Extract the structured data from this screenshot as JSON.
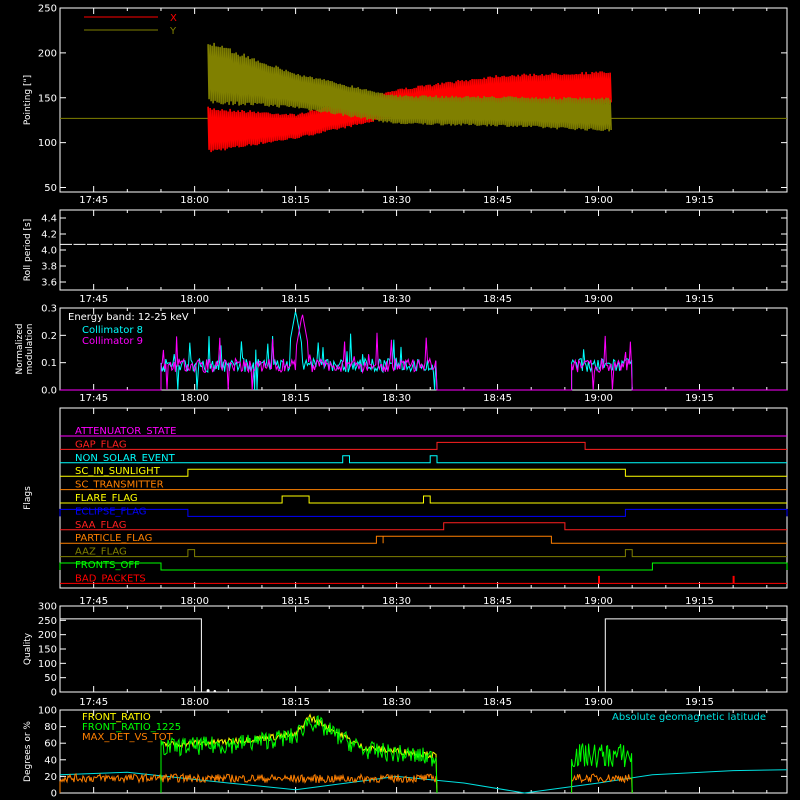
{
  "chart_data": [
    {
      "id": "pointing",
      "type": "line",
      "ylabel": "Pointing [\"]",
      "ylim": [
        45,
        250
      ],
      "yticks": [
        "50",
        "100",
        "150",
        "200",
        "250"
      ],
      "x_tick_labels": [
        "17:45",
        "18:00",
        "18:15",
        "18:30",
        "18:45",
        "19:00",
        "19:15"
      ],
      "legend": [
        {
          "name": "X",
          "color": "#ff0000"
        },
        {
          "name": "Y",
          "color": "#808000"
        }
      ],
      "series": [
        {
          "name": "X",
          "color": "#ff0000",
          "x": [
            "18:02",
            "18:15",
            "18:30",
            "18:45",
            "19:02"
          ],
          "y_low": [
            88,
            104,
            128,
            134,
            142
          ],
          "y_high": [
            140,
            132,
            160,
            176,
            180
          ]
        },
        {
          "name": "Y",
          "color": "#808000",
          "x": [
            "18:02",
            "18:15",
            "18:30",
            "18:45",
            "19:02"
          ],
          "y_low": [
            143,
            138,
            120,
            118,
            112
          ],
          "y_high": [
            214,
            178,
            153,
            152,
            150
          ]
        },
        {
          "name": "baseline",
          "color": "#808000",
          "x": [
            "17:40",
            "19:28"
          ],
          "y": [
            127,
            127
          ]
        }
      ]
    },
    {
      "id": "roll-period",
      "type": "line",
      "ylabel": "Roll period [s]",
      "ylim": [
        3.5,
        4.5
      ],
      "yticks": [
        "3.6",
        "3.8",
        "4.0",
        "4.2",
        "4.4"
      ],
      "x_tick_labels": [
        "17:45",
        "18:00",
        "18:15",
        "18:30",
        "18:45",
        "19:00",
        "19:15"
      ],
      "series": [
        {
          "name": "roll",
          "color": "#ffffff",
          "x": [
            "17:40",
            "19:28"
          ],
          "y": [
            4.07,
            4.07
          ]
        }
      ]
    },
    {
      "id": "modulation",
      "type": "line",
      "ylabel": "Normalized modulation",
      "ylim": [
        0,
        0.3
      ],
      "yticks": [
        "0.0",
        "0.1",
        "0.2",
        "0.3"
      ],
      "x_tick_labels": [
        "17:45",
        "18:00",
        "18:15",
        "18:30",
        "18:45",
        "19:00",
        "19:15"
      ],
      "annotation": "Energy band: 12-25 keV",
      "legend": [
        {
          "name": "Collimator 8",
          "color": "#00ffff"
        },
        {
          "name": "Collimator 9",
          "color": "#ff00ff"
        }
      ],
      "segments": [
        [
          "17:55",
          "18:36"
        ],
        [
          "18:56",
          "19:05"
        ]
      ],
      "series": [
        {
          "name": "Collimator 8",
          "color": "#00ffff",
          "level": 0.09,
          "peak": 0.29,
          "peak_x": "18:15"
        },
        {
          "name": "Collimator 9",
          "color": "#ff00ff",
          "level": 0.09,
          "peak": 0.28,
          "peak_x": "18:16"
        }
      ]
    },
    {
      "id": "flags",
      "type": "line",
      "ylabel": "Flags",
      "x_tick_labels": [
        "17:45",
        "18:00",
        "18:15",
        "18:30",
        "18:45",
        "19:00",
        "19:15"
      ],
      "flags": [
        {
          "name": "ATTENUATOR_STATE",
          "color": "#ff00ff",
          "on": []
        },
        {
          "name": "GAP_FLAG",
          "color": "#ff2020",
          "on": [
            [
              "18:36",
              "18:58"
            ]
          ]
        },
        {
          "name": "NON_SOLAR_EVENT",
          "color": "#00ffff",
          "on": [
            [
              "18:22",
              "18:23"
            ],
            [
              "18:35",
              "18:36"
            ]
          ]
        },
        {
          "name": "SC_IN_SUNLIGHT",
          "color": "#ffff00",
          "on": [
            [
              "17:59",
              "19:04"
            ]
          ]
        },
        {
          "name": "SC_TRANSMITTER",
          "color": "#ff8000",
          "on": []
        },
        {
          "name": "FLARE_FLAG",
          "color": "#ffff00",
          "on": [
            [
              "18:13",
              "18:17"
            ],
            [
              "18:34",
              "18:35"
            ]
          ]
        },
        {
          "name": "ECLIPSE_FLAG",
          "color": "#0000ff",
          "on": [
            [
              "17:40",
              "17:59"
            ],
            [
              "19:04",
              "19:28"
            ]
          ]
        },
        {
          "name": "SAA_FLAG",
          "color": "#ff2020",
          "on": [
            [
              "18:37",
              "18:55"
            ]
          ]
        },
        {
          "name": "PARTICLE_FLAG",
          "color": "#ff8000",
          "on": [
            [
              "18:27",
              "18:28"
            ],
            [
              "18:28",
              "18:53"
            ]
          ]
        },
        {
          "name": "AAZ_FLAG",
          "color": "#808000",
          "on": [
            [
              "17:59",
              "18:00"
            ],
            [
              "19:04",
              "19:05"
            ]
          ]
        },
        {
          "name": "FRONTS_OFF",
          "color": "#00ff00",
          "on": [
            [
              "17:40",
              "17:55"
            ],
            [
              "19:08",
              "19:28"
            ]
          ]
        },
        {
          "name": "BAD_PACKETS",
          "color": "#ff0000",
          "on": [
            [
              "19:00",
              "19:00"
            ],
            [
              "19:20",
              "19:20"
            ]
          ]
        }
      ]
    },
    {
      "id": "quality",
      "type": "line",
      "ylabel": "Quality",
      "ylim": [
        0,
        300
      ],
      "yticks": [
        "0",
        "50",
        "100",
        "150",
        "200",
        "250",
        "300"
      ],
      "x_tick_labels": [
        "17:45",
        "18:00",
        "18:15",
        "18:30",
        "18:45",
        "19:00",
        "19:15"
      ],
      "series": [
        {
          "name": "quality",
          "color": "#ffffff",
          "x": [
            "17:40",
            "18:01",
            "18:01",
            "19:01",
            "19:01",
            "19:28"
          ],
          "y": [
            255,
            255,
            0,
            0,
            255,
            255
          ]
        }
      ]
    },
    {
      "id": "geomagnetic",
      "type": "line",
      "ylabel": "Degrees or %",
      "ylim": [
        0,
        100
      ],
      "yticks": [
        "0",
        "20",
        "40",
        "60",
        "80",
        "100"
      ],
      "x_tick_labels": [
        "17:45",
        "18:00",
        "18:15",
        "18:30",
        "18:45",
        "19:00",
        "19:15"
      ],
      "legend": [
        {
          "name": "FRONT_RATIO",
          "color": "#ffff00"
        },
        {
          "name": "FRONT_RATIO_1225",
          "color": "#00ff00"
        },
        {
          "name": "MAX_DET_VS_TOT",
          "color": "#ff8000"
        }
      ],
      "latitude_label": "Absolute geomagnetic latitude",
      "series": [
        {
          "name": "FRONT_RATIO",
          "color": "#ffff00",
          "x": [
            "17:55",
            "18:05",
            "18:15",
            "18:17",
            "18:25",
            "18:36"
          ],
          "y": [
            58,
            62,
            70,
            92,
            55,
            45
          ]
        },
        {
          "name": "FRONT_RATIO_1225",
          "color": "#00ff00",
          "x": [
            "17:55",
            "18:05",
            "18:15",
            "18:17",
            "18:25",
            "18:36"
          ],
          "y": [
            55,
            58,
            68,
            88,
            52,
            42
          ]
        },
        {
          "name": "MAX_DET_VS_TOT",
          "color": "#ff8000",
          "x": [
            "17:40",
            "18:00",
            "18:20",
            "18:36"
          ],
          "y": [
            18,
            18,
            17,
            18
          ]
        },
        {
          "name": "Absolute geomagnetic latitude",
          "color": "#00e0e0",
          "x": [
            "17:40",
            "17:50",
            "18:05",
            "18:15",
            "18:30",
            "18:40",
            "18:49",
            "19:00",
            "19:08",
            "19:20",
            "19:28"
          ],
          "y": [
            22,
            25,
            12,
            4,
            20,
            12,
            0,
            12,
            22,
            27,
            28
          ]
        }
      ]
    }
  ]
}
